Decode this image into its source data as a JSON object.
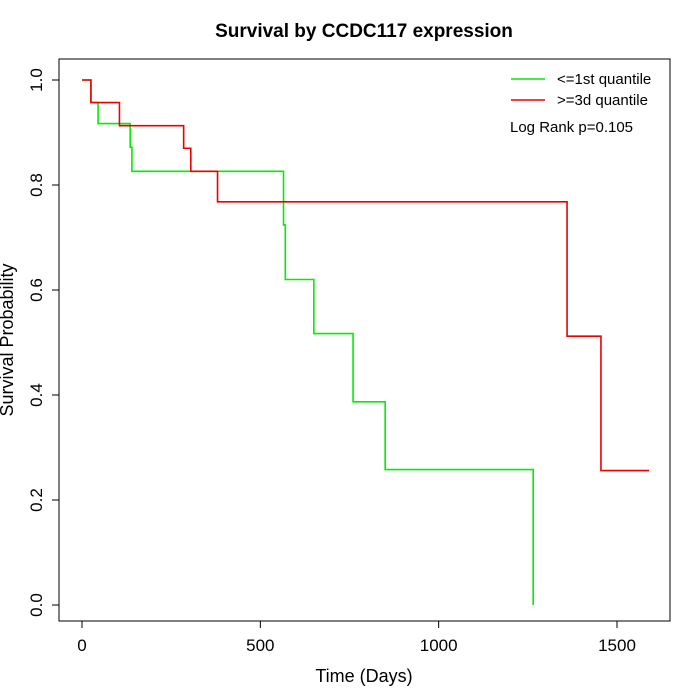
{
  "chart_data": {
    "type": "line",
    "step": true,
    "title": "Survival by CCDC117 expression",
    "xlabel": "Time (Days)",
    "ylabel": "Survival Probability",
    "xlim": [
      0,
      1600
    ],
    "ylim": [
      0,
      1.0
    ],
    "x_ticks": [
      0,
      500,
      1000,
      1500
    ],
    "y_ticks": [
      0.0,
      0.2,
      0.4,
      0.6,
      0.8,
      1.0
    ],
    "x_tick_labels": [
      "0",
      "500",
      "1000",
      "1500"
    ],
    "y_tick_labels": [
      "0.0",
      "0.2",
      "0.4",
      "0.6",
      "0.8",
      "1.0"
    ],
    "grid": false,
    "legend_position": "top-right",
    "annotation": "Log Rank p=0.105",
    "series": [
      {
        "name": "<=1st quantile",
        "color": "#00ee00",
        "x": [
          0,
          25,
          45,
          135,
          140,
          555,
          565,
          570,
          650,
          760,
          850,
          1265,
          1265
        ],
        "y": [
          1.0,
          0.957,
          0.917,
          0.872,
          0.826,
          0.826,
          0.724,
          0.62,
          0.517,
          0.387,
          0.258,
          0.258,
          0.0
        ]
      },
      {
        "name": ">=3d quantile",
        "color": "#ee0000",
        "x": [
          0,
          25,
          105,
          285,
          305,
          380,
          1360,
          1455,
          1590
        ],
        "y": [
          1.0,
          0.957,
          0.913,
          0.87,
          0.826,
          0.768,
          0.512,
          0.256,
          0.256
        ]
      }
    ]
  }
}
